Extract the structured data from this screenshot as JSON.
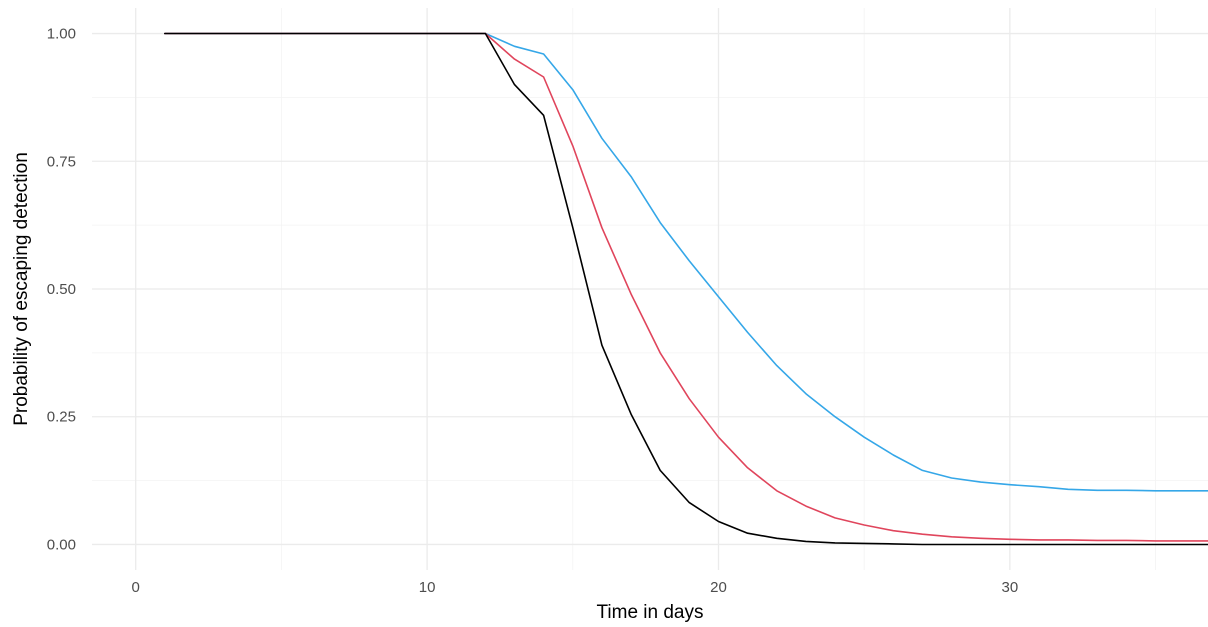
{
  "chart_data": {
    "type": "line",
    "title": "",
    "xlabel": "Time in days",
    "ylabel": "Probability of escaping detection",
    "xlim": [
      -1.5,
      36.8
    ],
    "ylim": [
      -0.05,
      1.05
    ],
    "x_ticks": [
      0,
      10,
      20,
      30
    ],
    "x_tick_labels": [
      "0",
      "10",
      "20",
      "30"
    ],
    "x_minor_ticks": [
      5,
      15,
      25,
      35
    ],
    "y_ticks": [
      0,
      0.25,
      0.5,
      0.75,
      1.0
    ],
    "y_tick_labels": [
      "0.00",
      "0.25",
      "0.50",
      "0.75",
      "1.00"
    ],
    "y_minor_ticks": [
      0.125,
      0.375,
      0.625,
      0.875
    ],
    "grid": true,
    "legend": "none",
    "series": [
      {
        "color": "#35a7e8",
        "x": [
          1,
          12,
          13,
          14,
          15,
          16,
          17,
          18,
          19,
          20,
          21,
          22,
          23,
          24,
          25,
          26,
          27,
          28,
          29,
          30,
          31,
          32,
          33,
          34,
          35,
          36,
          36.8
        ],
        "y": [
          1.0,
          1.0,
          0.975,
          0.96,
          0.89,
          0.795,
          0.72,
          0.63,
          0.555,
          0.485,
          0.415,
          0.35,
          0.295,
          0.25,
          0.21,
          0.175,
          0.145,
          0.13,
          0.122,
          0.117,
          0.113,
          0.108,
          0.106,
          0.106,
          0.105,
          0.105,
          0.105
        ]
      },
      {
        "color": "#e0455c",
        "x": [
          1,
          12,
          13,
          14,
          15,
          16,
          17,
          18,
          19,
          20,
          21,
          22,
          23,
          24,
          25,
          26,
          27,
          28,
          29,
          30,
          31,
          32,
          33,
          34,
          35,
          36,
          36.8
        ],
        "y": [
          1.0,
          1.0,
          0.95,
          0.915,
          0.78,
          0.62,
          0.49,
          0.375,
          0.285,
          0.21,
          0.15,
          0.105,
          0.075,
          0.052,
          0.038,
          0.027,
          0.02,
          0.015,
          0.012,
          0.01,
          0.009,
          0.009,
          0.008,
          0.008,
          0.007,
          0.007,
          0.007
        ]
      },
      {
        "color": "#000000",
        "x": [
          1,
          12,
          13,
          14,
          15,
          16,
          17,
          18,
          19,
          20,
          21,
          22,
          23,
          24,
          25,
          26,
          27,
          28,
          29,
          30,
          31,
          32,
          33,
          34,
          35,
          36,
          36.8
        ],
        "y": [
          1.0,
          1.0,
          0.9,
          0.84,
          0.62,
          0.39,
          0.255,
          0.145,
          0.082,
          0.045,
          0.022,
          0.012,
          0.006,
          0.003,
          0.002,
          0.001,
          0.0,
          0.0,
          0.0,
          0.0,
          0.0,
          0.0,
          0.0,
          0.0,
          0.0,
          0.0,
          0.0
        ]
      }
    ]
  }
}
